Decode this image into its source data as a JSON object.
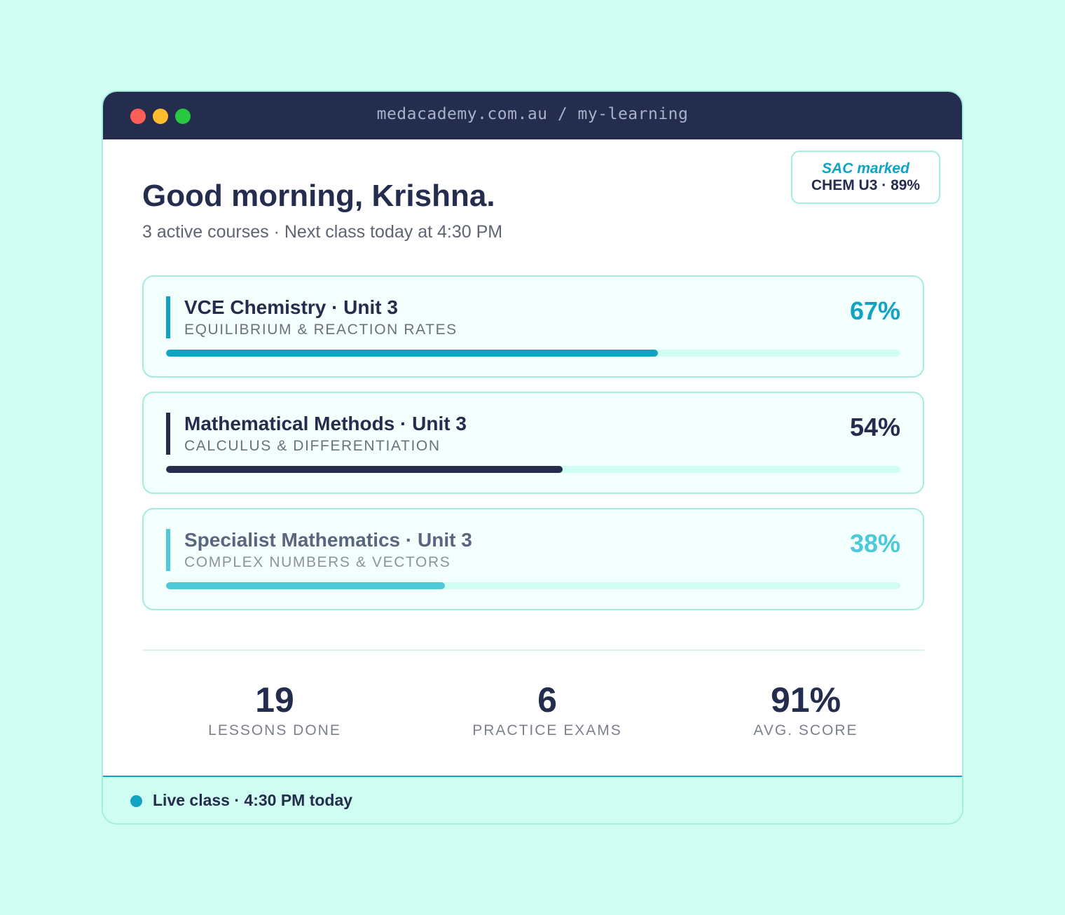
{
  "browser": {
    "url": "medacademy.com.au / my-learning"
  },
  "badge": {
    "title": "SAC marked",
    "value": "CHEM U3 · 89%"
  },
  "header": {
    "greeting": "Good morning, Krishna.",
    "subtitle": "3 active courses · Next class today at 4:30 PM"
  },
  "courses": [
    {
      "name": "VCE Chemistry · Unit 3",
      "topic": "EQUILIBRIUM & REACTION RATES",
      "percent_label": "67%",
      "progress": 0.67,
      "accent_color": "#10a3c2",
      "name_color": "#242d4e",
      "topic_color": "#6c717d",
      "percent_color": "#10a3c2"
    },
    {
      "name": "Mathematical Methods · Unit 3",
      "topic": "CALCULUS & DIFFERENTIATION",
      "percent_label": "54%",
      "progress": 0.54,
      "accent_color": "#242d4e",
      "name_color": "#242d4e",
      "topic_color": "#6c717d",
      "percent_color": "#242d4e"
    },
    {
      "name": "Specialist Mathematics · Unit 3",
      "topic": "COMPLEX NUMBERS & VECTORS",
      "percent_label": "38%",
      "progress": 0.38,
      "accent_color": "#4dc9d8",
      "name_color": "#5a6580",
      "topic_color": "#8d929c",
      "percent_color": "#4dc9d8"
    }
  ],
  "stats": [
    {
      "value": "19",
      "label": "LESSONS DONE"
    },
    {
      "value": "6",
      "label": "PRACTICE EXAMS"
    },
    {
      "value": "91%",
      "label": "AVG. SCORE"
    }
  ],
  "footer": {
    "live_text": "Live class · 4:30 PM today"
  }
}
